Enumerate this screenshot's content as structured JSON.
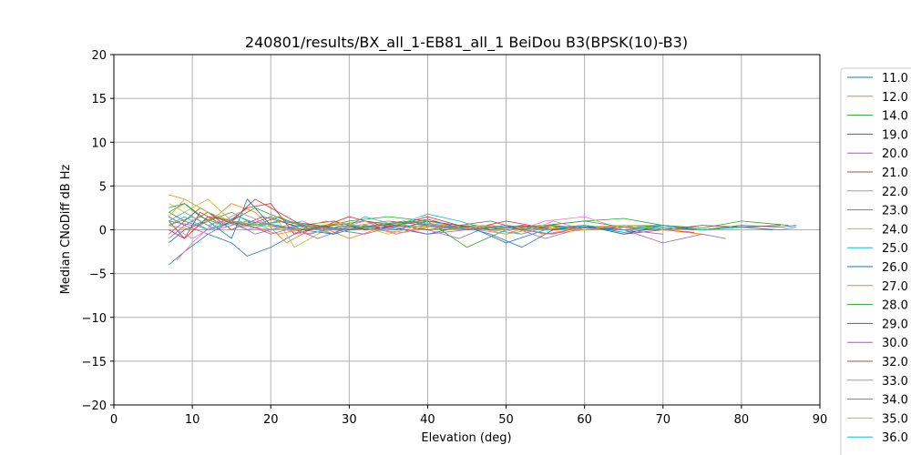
{
  "chart_data": {
    "type": "line",
    "title": "240801/results/BX_all_1-EB81_all_1 BeiDou B3(BPSK(10)-B3)",
    "xlabel": "Elevation (deg)",
    "ylabel": "Median CNoDiff dB Hz",
    "xlim": [
      0,
      90
    ],
    "ylim": [
      -20,
      20
    ],
    "xticks": [
      0,
      10,
      20,
      30,
      40,
      50,
      60,
      70,
      80,
      90
    ],
    "yticks": [
      -20,
      -15,
      -10,
      -5,
      0,
      5,
      10,
      15,
      20
    ],
    "xtick_labels": [
      "0",
      "10",
      "20",
      "30",
      "40",
      "50",
      "60",
      "70",
      "80",
      "90"
    ],
    "ytick_labels": [
      "−20",
      "−15",
      "−10",
      "−5",
      "0",
      "5",
      "10",
      "15",
      "20"
    ],
    "grid": true,
    "legend_position": "right, outside plot (clipped)",
    "series": [
      {
        "name": "11.0",
        "color": "#1f77b4",
        "x": [
          7,
          9,
          12,
          15,
          17,
          20,
          25,
          30,
          35,
          40,
          45,
          50,
          55,
          60,
          65,
          70,
          75,
          80,
          85,
          87
        ],
        "y": [
          -4.0,
          -2.5,
          -0.5,
          -1.5,
          -3.0,
          -2.0,
          0.5,
          0.0,
          0.3,
          -0.5,
          0.5,
          -1.5,
          0.0,
          0.5,
          -0.3,
          0.2,
          0.0,
          0.5,
          0.3,
          0.5
        ]
      },
      {
        "name": "12.0",
        "color": "#ff7f0e",
        "x": [
          7,
          9,
          11,
          13,
          15,
          18,
          22,
          26,
          30,
          35,
          40,
          45,
          50,
          55,
          60,
          65,
          70
        ],
        "y": [
          4.0,
          3.5,
          2.5,
          1.5,
          3.0,
          2.0,
          -1.5,
          0.5,
          -1.0,
          0.5,
          1.0,
          0.0,
          0.5,
          -0.5,
          0.3,
          0.5,
          0.0
        ]
      },
      {
        "name": "14.0",
        "color": "#2ca02c",
        "x": [
          7,
          9,
          12,
          15,
          18,
          21,
          25,
          30,
          35,
          40,
          45,
          50,
          55,
          60,
          65,
          70,
          75,
          80,
          86
        ],
        "y": [
          2.0,
          3.0,
          1.0,
          2.0,
          0.5,
          1.5,
          0.0,
          1.0,
          1.5,
          1.0,
          -2.0,
          0.0,
          0.5,
          1.0,
          1.3,
          0.5,
          0.2,
          1.0,
          0.5
        ]
      },
      {
        "name": "19.0",
        "color": "#d62728",
        "x": [
          7,
          9,
          11,
          14,
          17,
          20,
          23,
          27,
          30,
          35,
          40,
          45,
          50,
          55,
          60,
          65,
          70,
          74
        ],
        "y": [
          1.0,
          -1.0,
          2.0,
          0.5,
          2.5,
          3.0,
          -0.5,
          0.5,
          1.5,
          0.3,
          1.2,
          0.0,
          1.0,
          0.2,
          0.5,
          -0.5,
          0.0,
          -0.3
        ]
      },
      {
        "name": "20.0",
        "color": "#9467bd",
        "x": [
          7,
          9,
          12,
          15,
          18,
          22,
          26,
          30,
          35,
          40,
          45,
          50,
          55,
          60,
          65,
          70,
          75,
          78
        ],
        "y": [
          -1.0,
          0.5,
          -0.5,
          1.0,
          -0.5,
          0.5,
          -1.0,
          0.3,
          0.5,
          -0.5,
          0.0,
          0.5,
          -1.0,
          0.3,
          0.0,
          -1.5,
          -0.5,
          -1.0
        ]
      },
      {
        "name": "21.0",
        "color": "#8c564b",
        "x": [
          7,
          9,
          12,
          15,
          19,
          23,
          27,
          31,
          35,
          40,
          45,
          50,
          55,
          60,
          64
        ],
        "y": [
          1.5,
          0.5,
          2.0,
          0.0,
          1.5,
          0.5,
          0.0,
          0.5,
          1.0,
          0.5,
          0.0,
          0.3,
          0.5,
          0.0,
          0.3
        ]
      },
      {
        "name": "22.0",
        "color": "#e377c2",
        "x": [
          8,
          10,
          13,
          16,
          20,
          24,
          28,
          32,
          36,
          40,
          45,
          50,
          55,
          60,
          65,
          70
        ],
        "y": [
          -3.5,
          -1.5,
          1.0,
          0.5,
          0.0,
          1.0,
          -0.5,
          0.5,
          -0.5,
          0.5,
          0.2,
          -0.5,
          1.0,
          1.5,
          0.0,
          0.5
        ]
      },
      {
        "name": "23.0",
        "color": "#7f7f7f",
        "x": [
          7,
          10,
          13,
          17,
          21,
          25,
          29,
          33,
          37,
          41,
          45,
          50,
          55,
          60,
          65,
          70,
          75,
          80,
          85
        ],
        "y": [
          0.5,
          1.5,
          0.0,
          1.0,
          0.5,
          -0.5,
          0.5,
          0.0,
          0.5,
          0.3,
          0.0,
          0.5,
          0.0,
          0.3,
          0.0,
          0.5,
          0.0,
          0.3,
          0.5
        ]
      },
      {
        "name": "24.0",
        "color": "#bcbd22",
        "x": [
          7,
          9,
          12,
          15,
          18,
          21,
          23,
          27,
          31,
          35,
          40,
          45,
          50,
          55,
          60,
          65,
          70,
          72
        ],
        "y": [
          3.0,
          2.0,
          3.5,
          1.0,
          0.5,
          1.0,
          -2.0,
          0.0,
          0.5,
          1.0,
          0.0,
          0.5,
          -0.5,
          0.3,
          0.0,
          0.5,
          0.5,
          0.0
        ]
      },
      {
        "name": "25.0",
        "color": "#17becf",
        "x": [
          7,
          9,
          12,
          16,
          20,
          24,
          28,
          32,
          36,
          40,
          44,
          48,
          52,
          56,
          60,
          65,
          70
        ],
        "y": [
          1.0,
          2.0,
          0.5,
          1.5,
          0.0,
          0.5,
          -0.5,
          1.5,
          0.5,
          1.8,
          1.0,
          0.0,
          -0.5,
          0.5,
          0.2,
          0.0,
          0.3
        ]
      },
      {
        "name": "26.0",
        "color": "#1f77b4",
        "x": [
          7,
          9,
          12,
          15,
          17,
          20,
          24,
          28,
          32,
          36,
          40,
          44,
          48,
          52,
          56,
          60,
          65,
          70,
          75,
          80,
          84
        ],
        "y": [
          -1.5,
          0.0,
          1.0,
          -1.0,
          3.5,
          0.5,
          0.0,
          -0.5,
          0.5,
          0.0,
          1.0,
          0.5,
          -0.5,
          -2.0,
          0.0,
          0.5,
          -0.5,
          0.5,
          0.0,
          0.3,
          0.0
        ]
      },
      {
        "name": "27.0",
        "color": "#ff7f0e",
        "x": [
          7,
          10,
          13,
          17,
          21,
          25,
          29,
          33,
          37,
          41,
          45,
          50,
          55,
          60,
          65,
          70,
          75
        ],
        "y": [
          0.5,
          0.0,
          1.5,
          0.5,
          -0.5,
          0.3,
          0.8,
          0.0,
          -0.3,
          0.5,
          0.0,
          0.5,
          -0.5,
          0.0,
          0.5,
          0.0,
          -0.5
        ]
      },
      {
        "name": "28.0",
        "color": "#2ca02c",
        "x": [
          7,
          9,
          11,
          14,
          18,
          22,
          26,
          30,
          34,
          38,
          42,
          46,
          50,
          55,
          60,
          65,
          70,
          75,
          80
        ],
        "y": [
          2.5,
          3.0,
          1.5,
          0.5,
          2.5,
          1.0,
          0.5,
          0.0,
          0.5,
          1.0,
          0.0,
          0.5,
          0.0,
          0.5,
          1.0,
          0.3,
          0.5,
          0.0,
          0.5
        ]
      },
      {
        "name": "29.0",
        "color": "#d62728",
        "x": [
          7,
          9,
          12,
          15,
          18,
          21,
          24,
          28,
          32,
          36,
          40,
          44,
          48,
          52,
          56,
          60,
          65,
          70,
          74
        ],
        "y": [
          0.0,
          -1.0,
          1.5,
          1.0,
          3.5,
          2.0,
          0.5,
          1.0,
          0.0,
          0.5,
          1.5,
          0.5,
          0.0,
          0.5,
          0.0,
          0.3,
          0.0,
          0.5,
          0.0
        ]
      },
      {
        "name": "30.0",
        "color": "#9467bd",
        "x": [
          7,
          9,
          12,
          16,
          20,
          24,
          28,
          32,
          36,
          40,
          44,
          48,
          52,
          56,
          60,
          65,
          70
        ],
        "y": [
          -0.5,
          1.0,
          0.0,
          1.0,
          -0.5,
          0.5,
          0.0,
          -0.5,
          0.5,
          0.0,
          -1.0,
          0.5,
          0.0,
          -0.5,
          0.5,
          0.0,
          -0.5
        ]
      },
      {
        "name": "32.0",
        "color": "#8c564b",
        "x": [
          7,
          9,
          11,
          14,
          17,
          20,
          24,
          28,
          32,
          36,
          40,
          44,
          48,
          52,
          56,
          60,
          65,
          70,
          75,
          80,
          85
        ],
        "y": [
          2.0,
          1.0,
          2.5,
          1.0,
          0.5,
          1.5,
          0.0,
          0.5,
          1.0,
          0.5,
          0.0,
          0.5,
          1.0,
          0.0,
          0.5,
          0.0,
          0.3,
          0.0,
          0.5,
          0.3,
          0.5
        ]
      },
      {
        "name": "33.0",
        "color": "#e377c2",
        "x": [
          8,
          10,
          13,
          16,
          20,
          24,
          28,
          32,
          36,
          40,
          44,
          48,
          52,
          56,
          60,
          64
        ],
        "y": [
          0.0,
          -1.0,
          0.5,
          2.0,
          0.5,
          -0.5,
          0.0,
          1.0,
          -0.5,
          0.5,
          0.0,
          0.5,
          -0.5,
          1.0,
          0.0,
          0.5
        ]
      },
      {
        "name": "34.0",
        "color": "#7f7f7f",
        "x": [
          7,
          10,
          13,
          17,
          21,
          25,
          29,
          33,
          37,
          41,
          45,
          50,
          55,
          60,
          65,
          70,
          75,
          80,
          85,
          87
        ],
        "y": [
          1.0,
          0.5,
          1.5,
          0.0,
          1.0,
          0.5,
          0.0,
          0.5,
          1.0,
          0.5,
          0.0,
          0.5,
          0.0,
          0.5,
          0.0,
          0.5,
          0.0,
          0.3,
          0.0,
          0.3
        ]
      },
      {
        "name": "35.0",
        "color": "#bcbd22",
        "x": [
          7,
          9,
          12,
          15,
          19,
          23,
          27,
          31,
          35,
          39,
          43,
          47,
          51,
          55,
          60,
          65,
          70
        ],
        "y": [
          1.5,
          3.5,
          2.0,
          1.0,
          0.5,
          0.0,
          1.0,
          0.5,
          -0.5,
          0.5,
          0.0,
          0.5,
          0.0,
          0.5,
          0.0,
          0.5,
          0.0
        ]
      },
      {
        "name": "36.0",
        "color": "#17becf",
        "x": [
          7,
          9,
          12,
          15,
          18,
          22,
          26,
          30,
          34,
          38,
          42,
          46,
          50,
          55,
          60,
          65,
          70,
          75,
          80
        ],
        "y": [
          0.5,
          1.5,
          0.0,
          1.0,
          0.5,
          1.0,
          0.0,
          0.5,
          0.0,
          1.0,
          0.5,
          0.0,
          0.5,
          0.0,
          0.5,
          0.0,
          0.5,
          0.0,
          0.3
        ]
      }
    ]
  }
}
